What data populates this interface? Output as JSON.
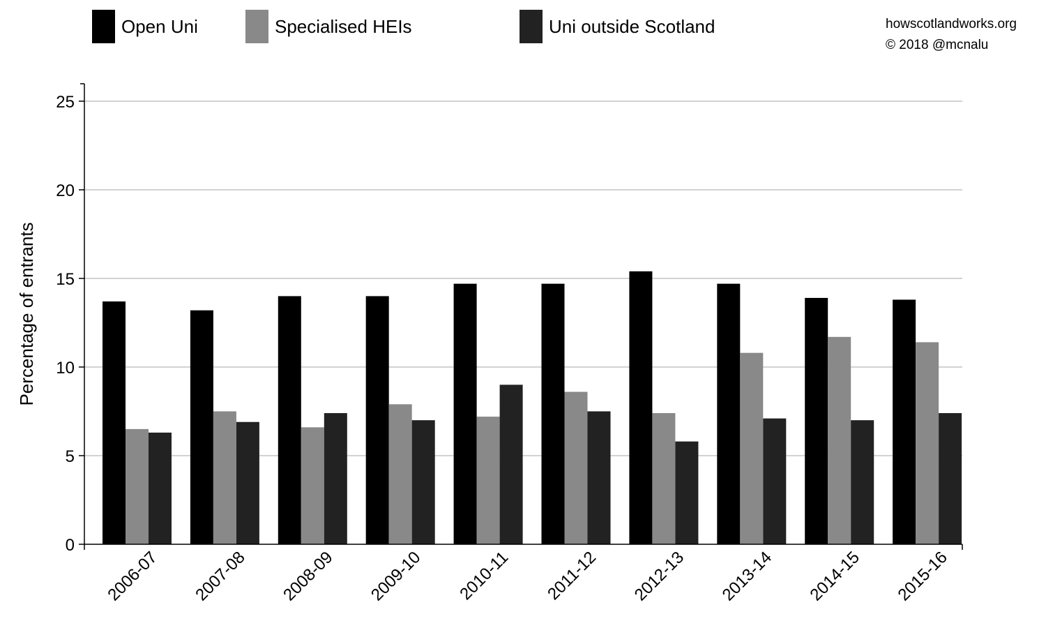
{
  "credits": {
    "site": "howscotlandworks.org",
    "copyright": "© 2018  @mcnalu"
  },
  "chart_data": {
    "type": "bar",
    "title": "",
    "xlabel": "",
    "ylabel": "Percentage of entrants",
    "ylim": [
      0,
      26
    ],
    "yticks": [
      0,
      5,
      10,
      15,
      20,
      25
    ],
    "grid": true,
    "legend_position": "top",
    "categories": [
      "2006-07",
      "2007-08",
      "2008-09",
      "2009-10",
      "2010-11",
      "2011-12",
      "2012-13",
      "2013-14",
      "2014-15",
      "2015-16"
    ],
    "series": [
      {
        "name": "Open Uni",
        "color": "#000000",
        "values": [
          13.7,
          13.2,
          14.0,
          14.0,
          14.7,
          14.7,
          15.4,
          14.7,
          13.9,
          13.8
        ]
      },
      {
        "name": "Specialised HEIs",
        "color": "#898989",
        "values": [
          6.5,
          7.5,
          6.6,
          7.9,
          7.2,
          8.6,
          7.4,
          10.8,
          11.7,
          11.4
        ]
      },
      {
        "name": "Uni outside Scotland",
        "color": "#222222",
        "values": [
          6.3,
          6.9,
          7.4,
          7.0,
          9.0,
          7.5,
          5.8,
          7.1,
          7.0,
          7.4
        ]
      }
    ]
  }
}
